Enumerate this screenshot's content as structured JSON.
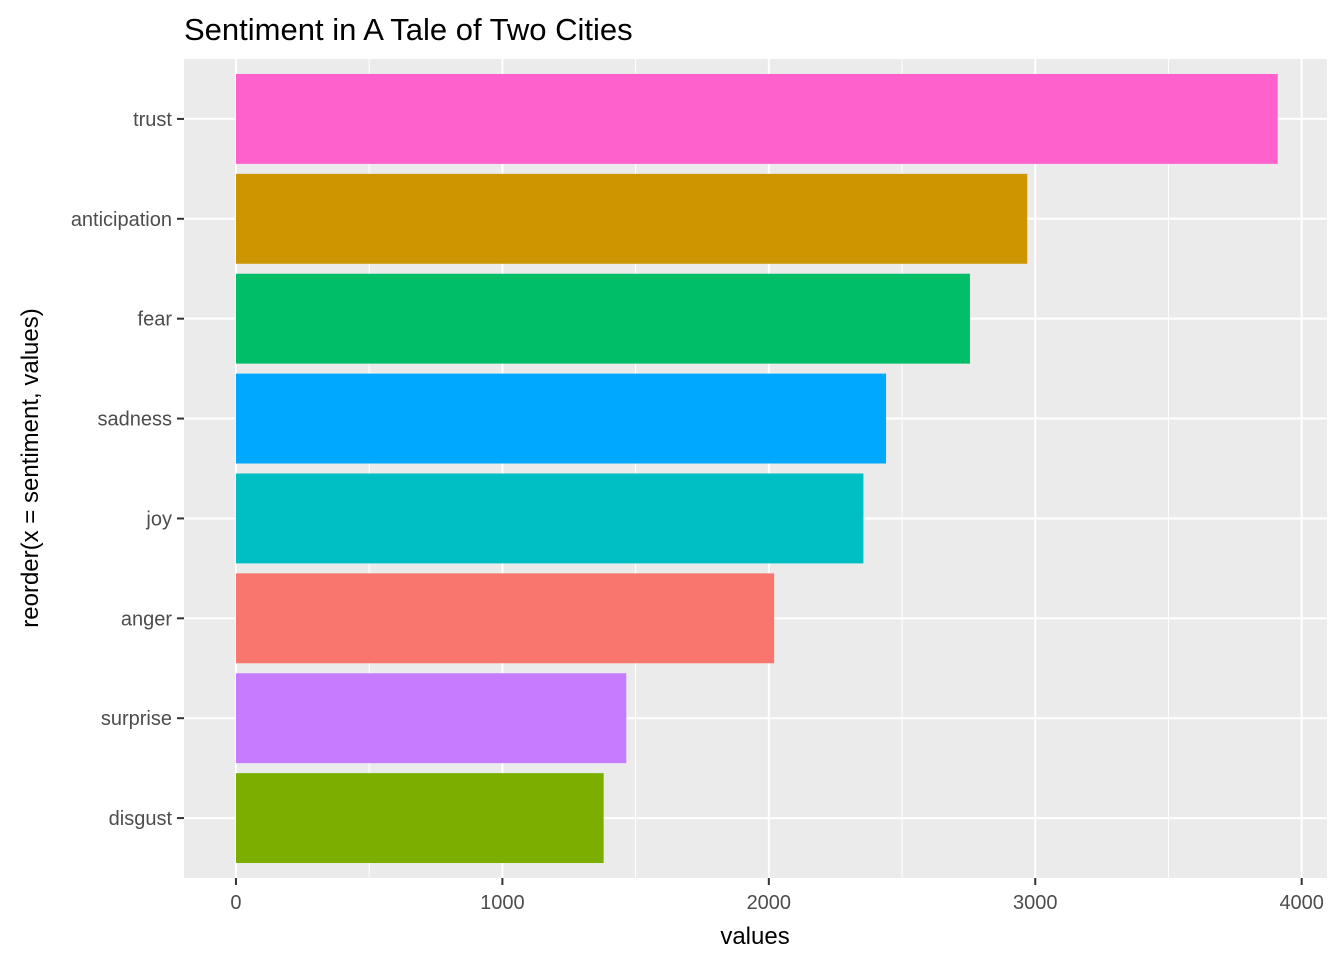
{
  "chart_data": {
    "type": "bar",
    "orientation": "horizontal",
    "title": "Sentiment in A Tale of Two Cities",
    "xlabel": "values",
    "ylabel": "reorder(x = sentiment, values)",
    "categories": [
      "trust",
      "anticipation",
      "fear",
      "sadness",
      "joy",
      "anger",
      "surprise",
      "disgust"
    ],
    "values": [
      3910,
      2970,
      2755,
      2440,
      2355,
      2020,
      1465,
      1380
    ],
    "colors": [
      "#FF61CC",
      "#CD9600",
      "#00BE67",
      "#00A9FF",
      "#00BFC4",
      "#F8766D",
      "#C77CFF",
      "#7CAE00"
    ],
    "x_ticks": [
      0,
      1000,
      2000,
      3000,
      4000
    ],
    "x_tick_labels": [
      "0",
      "1000",
      "2000",
      "3000",
      "4000"
    ],
    "xlim": [
      -195,
      4095
    ],
    "grid": true,
    "panel_background": "#EBEBEB",
    "grid_color": "#FFFFFF",
    "legend": "none"
  }
}
